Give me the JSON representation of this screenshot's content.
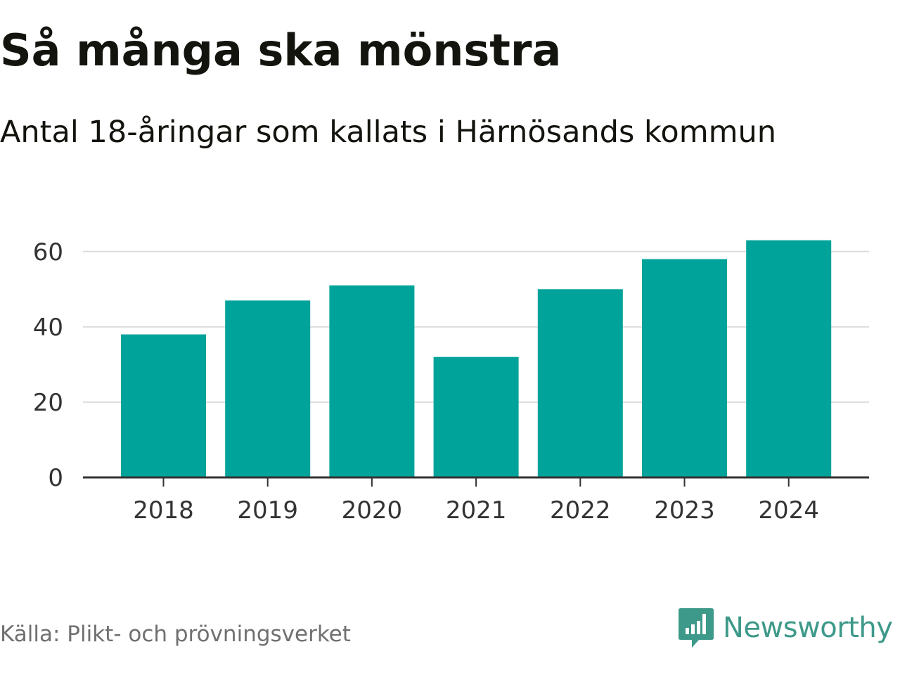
{
  "title": "Så många ska mönstra",
  "subtitle": "Antal 18-åringar som kallats i Härnösands kommun",
  "source": "Källa: Plikt- och prövningsverket",
  "brand": {
    "name": "Newsworthy",
    "icon": "newsworthy-logo-icon",
    "color": "#3d9989"
  },
  "colors": {
    "bar": "#00a39a",
    "grid": "#dddddd",
    "axis": "#333333"
  },
  "chart_data": {
    "type": "bar",
    "title": "Så många ska mönstra",
    "subtitle": "Antal 18-åringar som kallats i Härnösands kommun",
    "categories": [
      "2018",
      "2019",
      "2020",
      "2021",
      "2022",
      "2023",
      "2024"
    ],
    "values": [
      38,
      47,
      51,
      32,
      50,
      58,
      63
    ],
    "series": [
      {
        "name": "Antal 18-åringar som kallats",
        "values": [
          38,
          47,
          51,
          32,
          50,
          58,
          63
        ]
      }
    ],
    "yticks": [
      0,
      20,
      40,
      60
    ],
    "ylim": [
      0,
      65
    ],
    "xlabel": "",
    "ylabel": "",
    "grid": true,
    "legend": "none"
  }
}
